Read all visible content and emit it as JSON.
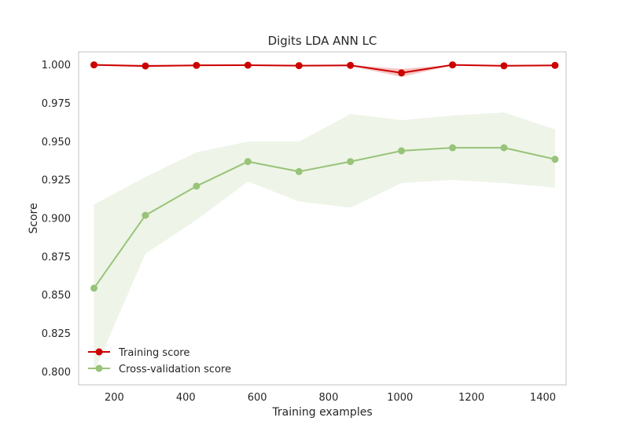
{
  "chart_data": {
    "type": "line",
    "title": "Digits LDA ANN LC",
    "xlabel": "Training examples",
    "ylabel": "Score",
    "xlim": [
      100,
      1465
    ],
    "ylim": [
      0.7915,
      1.0085
    ],
    "x_ticks": [
      200,
      400,
      600,
      800,
      1000,
      1200,
      1400
    ],
    "y_ticks": [
      0.8,
      0.825,
      0.85,
      0.875,
      0.9,
      0.925,
      0.95,
      0.975,
      1.0
    ],
    "x_tick_labels": [
      "200",
      "400",
      "600",
      "800",
      "1000",
      "1200",
      "1400"
    ],
    "y_tick_labels": [
      "0.800",
      "0.825",
      "0.850",
      "0.875",
      "0.900",
      "0.925",
      "0.950",
      "0.975",
      "1.000"
    ],
    "grid": false,
    "legend_position": "lower-left",
    "x": [
      143,
      287,
      430,
      574,
      717,
      861,
      1004,
      1147,
      1291,
      1434
    ],
    "series": [
      {
        "name": "Training score",
        "color": "#cc0000",
        "band_color": "#f7c4c4",
        "values": [
          1.0,
          0.9993,
          0.9997,
          0.9998,
          0.9995,
          0.9997,
          0.9948,
          1.0,
          0.9994,
          0.9997
        ],
        "lower": [
          0.9995,
          0.9985,
          0.9993,
          0.9994,
          0.999,
          0.9993,
          0.9922,
          0.9998,
          0.999,
          0.9993
        ],
        "upper": [
          1.0,
          1.0,
          1.0,
          1.0,
          1.0,
          1.0,
          0.9974,
          1.0,
          0.9998,
          1.0
        ]
      },
      {
        "name": "Cross-validation score",
        "color": "#98c379",
        "band_color": "#eef4e7",
        "values": [
          0.8545,
          0.902,
          0.921,
          0.937,
          0.9305,
          0.937,
          0.944,
          0.946,
          0.946,
          0.9385
        ],
        "lower": [
          0.8,
          0.877,
          0.899,
          0.924,
          0.911,
          0.907,
          0.923,
          0.925,
          0.923,
          0.92
        ],
        "upper": [
          0.909,
          0.927,
          0.943,
          0.95,
          0.95,
          0.968,
          0.964,
          0.967,
          0.969,
          0.958
        ]
      }
    ]
  }
}
